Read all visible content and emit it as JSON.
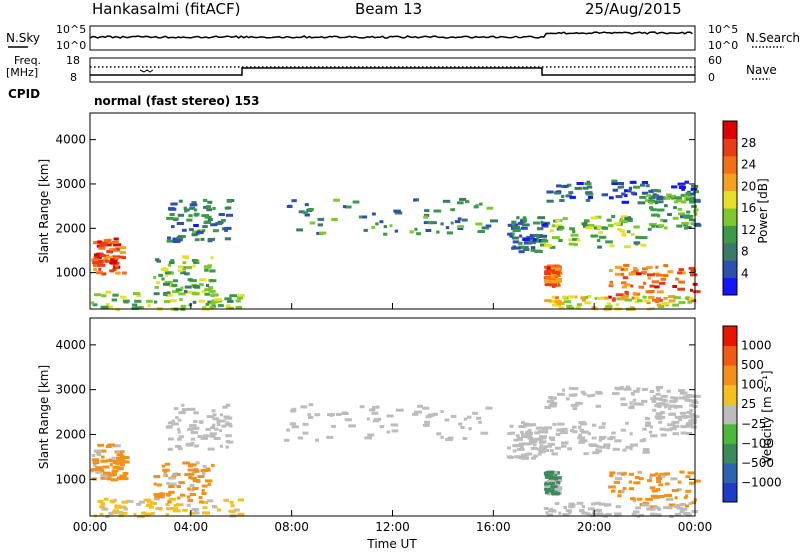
{
  "header": {
    "station": "Hankasalmi (fitACF)",
    "beam": "Beam 13",
    "date": "25/Aug/2015"
  },
  "top_panels": {
    "nsky_label": "N.Sky",
    "nsky_ticks": [
      "10^5",
      "10^0"
    ],
    "nsearch_label": "N.Search",
    "nsearch_ticks": [
      "10^5",
      "10^0"
    ],
    "freq_label_1": "Freq.",
    "freq_label_2": "[MHz]",
    "freq_ticks": [
      "18",
      "8"
    ],
    "nave_label": "Nave",
    "nave_ticks": [
      "60",
      "0"
    ],
    "cpid_label": "CPID",
    "cpid_value": "normal (fast stereo) 153"
  },
  "chart_data": [
    {
      "type": "heatmap",
      "panel": "power",
      "xlabel": "",
      "ylabel": "Slant Range [km]",
      "xlim": [
        0,
        24
      ],
      "ylim": [
        180,
        4600
      ],
      "yticks": [
        "4000",
        "3000",
        "2000",
        "1000"
      ],
      "ytick_values": [
        4000,
        3000,
        2000,
        1000
      ],
      "colorbar": {
        "label": "Power [dB]",
        "ticks": [
          "28",
          "24",
          "20",
          "16",
          "12",
          "8",
          "4"
        ],
        "tick_values": [
          28,
          24,
          20,
          16,
          12,
          8,
          4
        ],
        "range": [
          0,
          32
        ],
        "colors": [
          "#1414ff",
          "#2c4fb0",
          "#3a7a6a",
          "#3a9a48",
          "#7cc82e",
          "#e8e028",
          "#f4a020",
          "#f07018",
          "#e83c18",
          "#dc0000"
        ]
      },
      "regions": [
        {
          "t": [
            0.0,
            1.3
          ],
          "r": [
            1000,
            1800
          ],
          "v": 26
        },
        {
          "t": [
            0.0,
            6.0
          ],
          "r": [
            200,
            600
          ],
          "v": 14
        },
        {
          "t": [
            2.5,
            4.8
          ],
          "r": [
            500,
            1400
          ],
          "v": 13
        },
        {
          "t": [
            3.0,
            5.5
          ],
          "r": [
            1700,
            2700
          ],
          "v": 8
        },
        {
          "t": [
            7.5,
            16.0
          ],
          "r": [
            1900,
            2700
          ],
          "v": 9
        },
        {
          "t": [
            16.5,
            18.0
          ],
          "r": [
            1500,
            2300
          ],
          "v": 7
        },
        {
          "t": [
            18.0,
            24.0
          ],
          "r": [
            2600,
            3100
          ],
          "v": 6
        },
        {
          "t": [
            18.0,
            22.0
          ],
          "r": [
            1600,
            2300
          ],
          "v": 14
        },
        {
          "t": [
            22.0,
            24.0
          ],
          "r": [
            2000,
            2900
          ],
          "v": 10
        },
        {
          "t": [
            18.0,
            18.5
          ],
          "r": [
            700,
            1200
          ],
          "v": 24
        },
        {
          "t": [
            20.5,
            24.0
          ],
          "r": [
            400,
            1200
          ],
          "v": 25
        },
        {
          "t": [
            18.0,
            24.0
          ],
          "r": [
            200,
            500
          ],
          "v": 18
        }
      ]
    },
    {
      "type": "heatmap",
      "panel": "velocity",
      "xlabel": "Time UT",
      "ylabel": "Slant Range [km]",
      "xlim": [
        0,
        24
      ],
      "ylim": [
        180,
        4600
      ],
      "xticks": [
        "00:00",
        "04:00",
        "08:00",
        "12:00",
        "16:00",
        "20:00",
        "00:00"
      ],
      "xtick_values": [
        0,
        4,
        8,
        12,
        16,
        20,
        24
      ],
      "yticks": [
        "4000",
        "3000",
        "2000",
        "1000"
      ],
      "ytick_values": [
        4000,
        3000,
        2000,
        1000
      ],
      "colorbar": {
        "label": "Velocity [m s⁻¹]",
        "ticks": [
          "1000",
          "500",
          "100",
          "25",
          "−25",
          "−100",
          "−500",
          "−1000"
        ],
        "colors": [
          "#1e3cc8",
          "#2c64b4",
          "#3a8a5a",
          "#4ab83a",
          "#bcbcbc",
          "#f4c020",
          "#f49018",
          "#f05a14",
          "#e81400"
        ]
      },
      "regions": [
        {
          "t": [
            0.0,
            1.3
          ],
          "r": [
            1000,
            1800
          ],
          "c": "#f49018"
        },
        {
          "t": [
            0.0,
            6.0
          ],
          "r": [
            200,
            600
          ],
          "c": "#f4c020"
        },
        {
          "t": [
            2.5,
            4.8
          ],
          "r": [
            500,
            1400
          ],
          "c": "#f49018"
        },
        {
          "t": [
            3.0,
            5.5
          ],
          "r": [
            1700,
            2700
          ],
          "c": "#bcbcbc"
        },
        {
          "t": [
            7.5,
            16.0
          ],
          "r": [
            1900,
            2700
          ],
          "c": "#bcbcbc"
        },
        {
          "t": [
            16.5,
            18.0
          ],
          "r": [
            1500,
            2300
          ],
          "c": "#bcbcbc"
        },
        {
          "t": [
            18.0,
            24.0
          ],
          "r": [
            2600,
            3100
          ],
          "c": "#bcbcbc"
        },
        {
          "t": [
            18.0,
            22.0
          ],
          "r": [
            1600,
            2300
          ],
          "c": "#bcbcbc"
        },
        {
          "t": [
            22.0,
            24.0
          ],
          "r": [
            2000,
            2900
          ],
          "c": "#bcbcbc"
        },
        {
          "t": [
            18.0,
            18.5
          ],
          "r": [
            700,
            1200
          ],
          "c": "#3a8a5a"
        },
        {
          "t": [
            20.5,
            24.0
          ],
          "r": [
            400,
            1200
          ],
          "c": "#f49018"
        },
        {
          "t": [
            18.0,
            24.0
          ],
          "r": [
            200,
            500
          ],
          "c": "#bcbcbc"
        }
      ]
    }
  ]
}
